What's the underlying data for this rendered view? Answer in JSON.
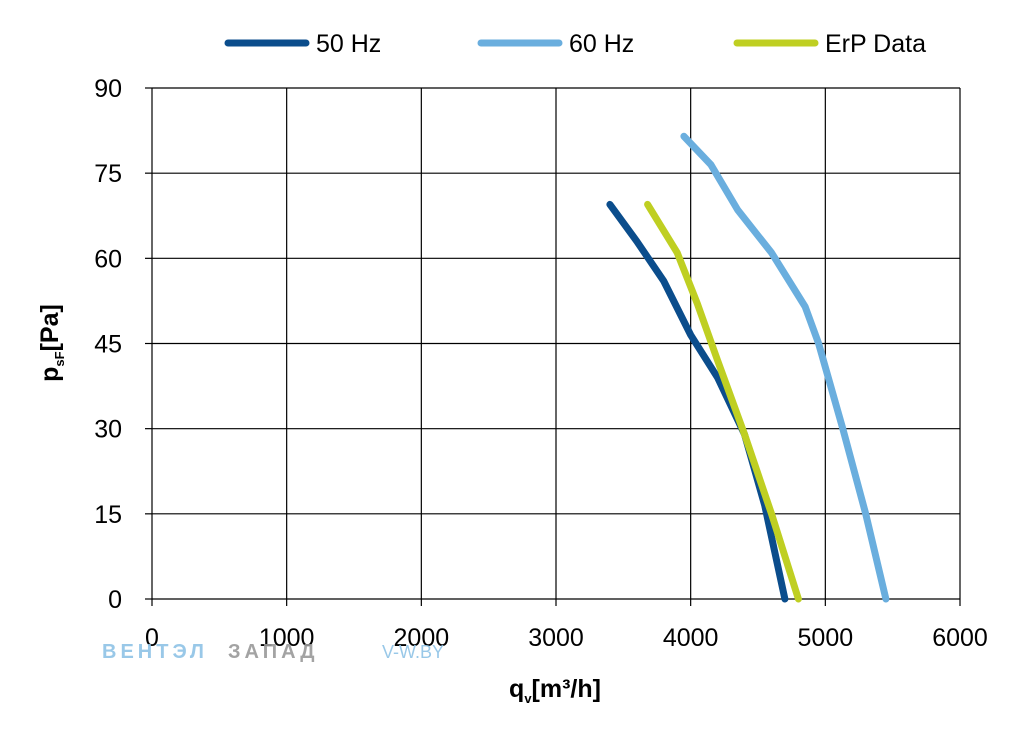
{
  "chart_data": {
    "type": "line",
    "xlabel": {
      "main": "q",
      "sub": "v",
      "unit": "[m³/h]"
    },
    "ylabel": {
      "main": "p",
      "sub": "sF",
      "unit": "[Pa]"
    },
    "xlim": [
      0,
      6000
    ],
    "ylim": [
      0,
      90
    ],
    "xticks": [
      0,
      1000,
      2000,
      3000,
      4000,
      5000,
      6000
    ],
    "yticks": [
      0,
      15,
      30,
      45,
      60,
      75,
      90
    ],
    "grid": true,
    "legend_position": "top",
    "series": [
      {
        "name": "50 Hz",
        "color": "#0b4d8c",
        "x": [
          3400,
          3600,
          3800,
          4000,
          4200,
          4400,
          4550,
          4700
        ],
        "y": [
          69.5,
          63,
          56,
          46.5,
          39,
          29,
          16.5,
          0
        ]
      },
      {
        "name": "60 Hz",
        "color": "#6aaede",
        "x": [
          3950,
          4150,
          4350,
          4600,
          4850,
          4950,
          5130,
          5300,
          5450
        ],
        "y": [
          81.5,
          76.5,
          68.5,
          61,
          51.5,
          45,
          30,
          15,
          0
        ]
      },
      {
        "name": "ErP Data",
        "color": "#bfcf22",
        "x": [
          3680,
          3900,
          4050,
          4200,
          4400,
          4600,
          4800
        ],
        "y": [
          69.5,
          61,
          52,
          42,
          29,
          15,
          0
        ]
      }
    ]
  },
  "watermark": {
    "part1": "ВЕНТЭЛ",
    "part2": "ЗАПАД",
    "part3": "V-W.BY"
  }
}
